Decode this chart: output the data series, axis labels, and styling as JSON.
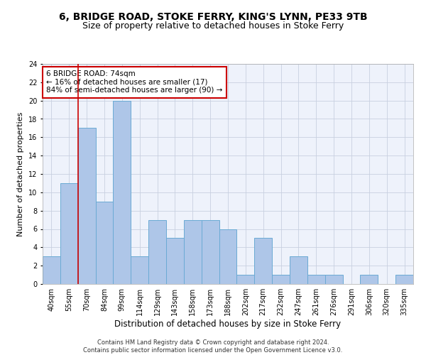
{
  "title": "6, BRIDGE ROAD, STOKE FERRY, KING'S LYNN, PE33 9TB",
  "subtitle": "Size of property relative to detached houses in Stoke Ferry",
  "xlabel": "Distribution of detached houses by size in Stoke Ferry",
  "ylabel": "Number of detached properties",
  "categories": [
    "40sqm",
    "55sqm",
    "70sqm",
    "84sqm",
    "99sqm",
    "114sqm",
    "129sqm",
    "143sqm",
    "158sqm",
    "173sqm",
    "188sqm",
    "202sqm",
    "217sqm",
    "232sqm",
    "247sqm",
    "261sqm",
    "276sqm",
    "291sqm",
    "306sqm",
    "320sqm",
    "335sqm"
  ],
  "values": [
    3,
    11,
    17,
    9,
    20,
    3,
    7,
    5,
    7,
    7,
    6,
    1,
    5,
    1,
    3,
    1,
    1,
    0,
    1,
    0,
    1
  ],
  "bar_color": "#aec6e8",
  "bar_edge_color": "#6aaad4",
  "vline_x_index": 2,
  "vline_color": "#cc0000",
  "annotation_text": "6 BRIDGE ROAD: 74sqm\n← 16% of detached houses are smaller (17)\n84% of semi-detached houses are larger (90) →",
  "annotation_box_color": "#ffffff",
  "annotation_box_edge": "#cc0000",
  "ylim": [
    0,
    24
  ],
  "yticks": [
    0,
    2,
    4,
    6,
    8,
    10,
    12,
    14,
    16,
    18,
    20,
    22,
    24
  ],
  "background_color": "#eef2fb",
  "footer": "Contains HM Land Registry data © Crown copyright and database right 2024.\nContains public sector information licensed under the Open Government Licence v3.0.",
  "title_fontsize": 10,
  "subtitle_fontsize": 9,
  "ylabel_fontsize": 8,
  "xlabel_fontsize": 8.5,
  "tick_fontsize": 7,
  "annot_fontsize": 7.5,
  "footer_fontsize": 6
}
